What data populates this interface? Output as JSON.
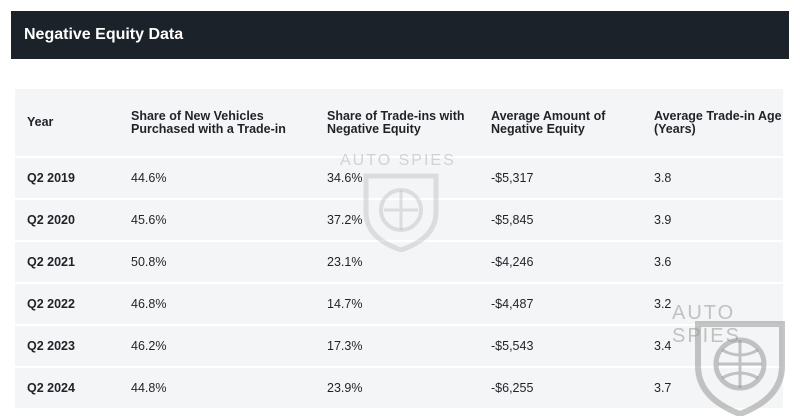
{
  "header": {
    "title": "Negative Equity Data"
  },
  "table": {
    "columns": [
      "Year",
      "Share of New Vehicles Purchased with a Trade-in",
      "Share of Trade-ins with Negative Equity",
      "Average Amount of Negative Equity",
      "Average Trade-in Age (Years)"
    ],
    "rows": [
      [
        "Q2 2019",
        "44.6%",
        "34.6%",
        "-$5,317",
        "3.8"
      ],
      [
        "Q2 2020",
        "45.6%",
        "37.2%",
        "-$5,845",
        "3.9"
      ],
      [
        "Q2 2021",
        "50.8%",
        "23.1%",
        "-$4,246",
        "3.6"
      ],
      [
        "Q2 2022",
        "46.8%",
        "14.7%",
        "-$4,487",
        "3.2"
      ],
      [
        "Q2 2023",
        "46.2%",
        "17.3%",
        "-$5,543",
        "3.4"
      ],
      [
        "Q2 2024",
        "44.8%",
        "23.9%",
        "-$6,255",
        "3.7"
      ]
    ]
  },
  "watermark": {
    "text": "AUTO SPIES"
  }
}
